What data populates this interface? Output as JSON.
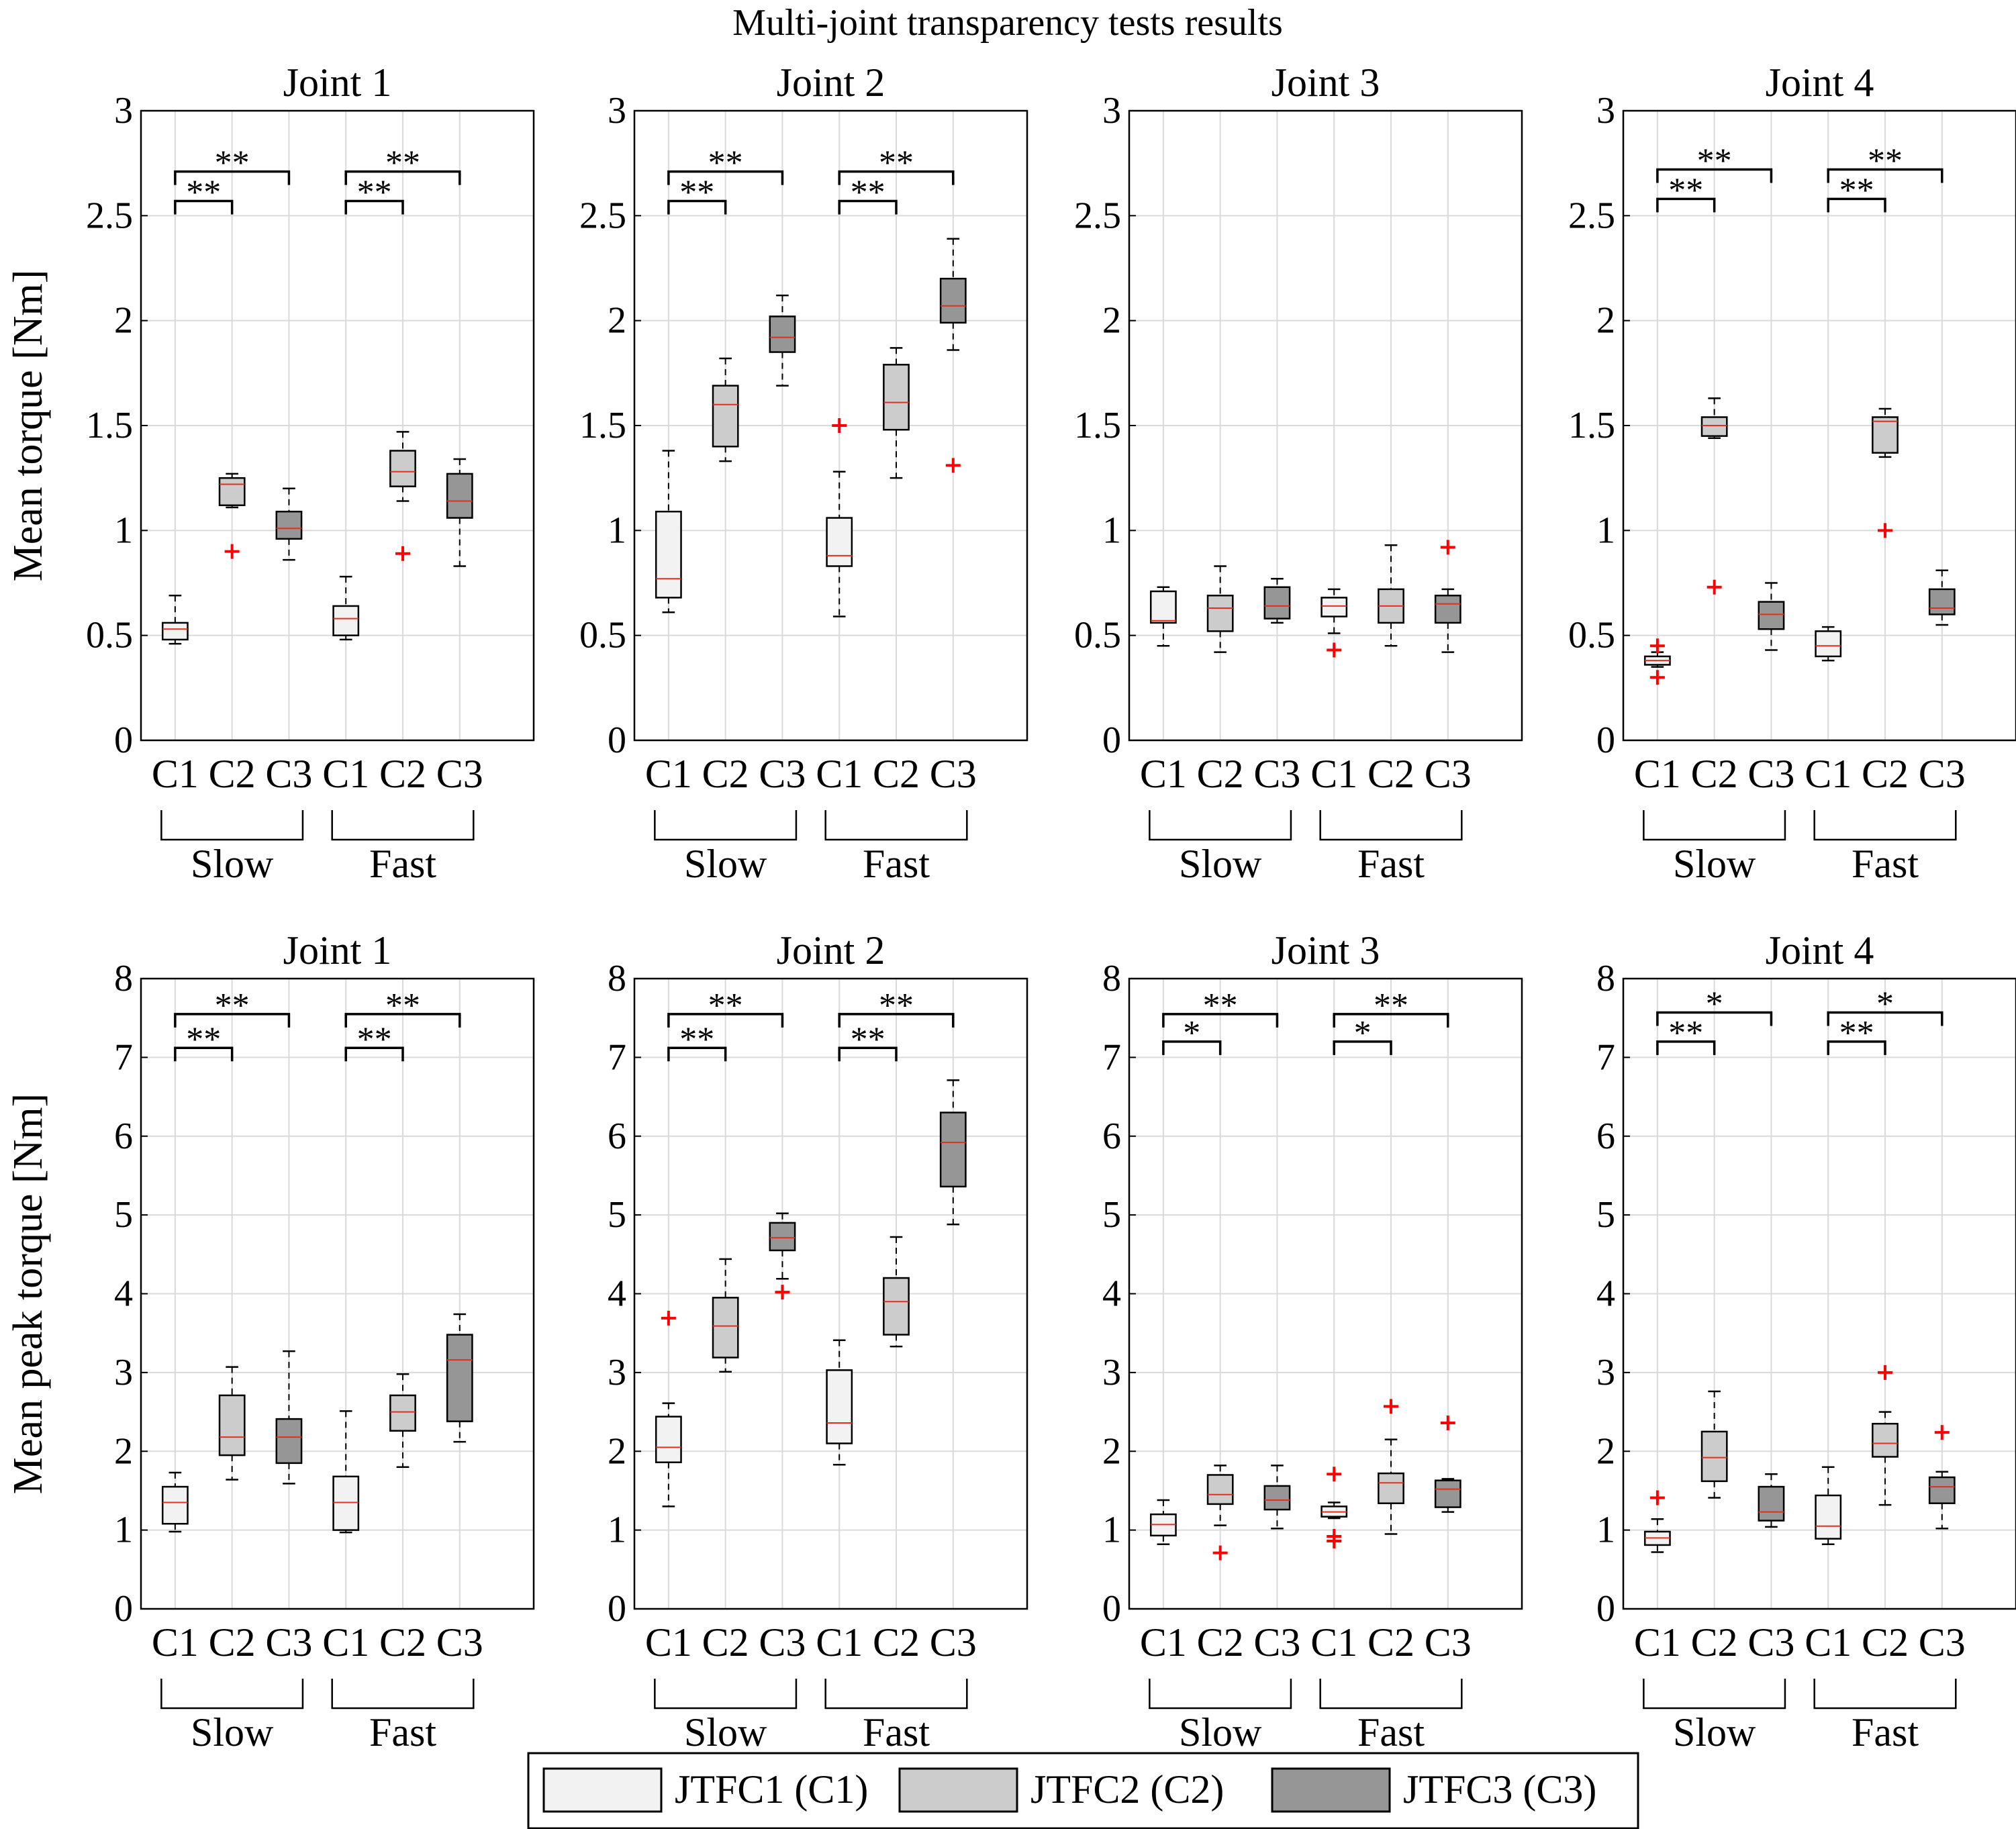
{
  "title": "Multi-joint transparency tests results",
  "colors": {
    "C1": "#f2f2f2",
    "C2": "#cccccc",
    "C3": "#969696",
    "median": "#e0301e",
    "outlier": "#ff0000",
    "grid": "#dadada"
  },
  "legend": [
    {
      "key": "C1",
      "label": "JTFC1 (C1)"
    },
    {
      "key": "C2",
      "label": "JTFC2 (C2)"
    },
    {
      "key": "C3",
      "label": "JTFC3 (C3)"
    }
  ],
  "chart_data": [
    {
      "type": "box",
      "row": 0,
      "col": 0,
      "title": "Joint 1",
      "ylabel": "Mean torque [Nm]",
      "ylim": [
        0,
        3
      ],
      "yticks": [
        "0",
        "0.5",
        "1",
        "1.5",
        "2",
        "2.5",
        "3"
      ],
      "ytick_values": [
        0,
        0.5,
        1,
        1.5,
        2,
        2.5,
        3
      ],
      "categories": [
        "C1",
        "C2",
        "C3",
        "C1",
        "C2",
        "C3"
      ],
      "groups": [
        "Slow",
        "Fast"
      ],
      "boxes": [
        {
          "c": "C1",
          "min": 0.46,
          "q1": 0.48,
          "med": 0.53,
          "q3": 0.56,
          "max": 0.69,
          "outliers": []
        },
        {
          "c": "C2",
          "min": 1.11,
          "q1": 1.12,
          "med": 1.22,
          "q3": 1.25,
          "max": 1.27,
          "outliers": [
            0.9
          ]
        },
        {
          "c": "C3",
          "min": 0.86,
          "q1": 0.96,
          "med": 1.01,
          "q3": 1.09,
          "max": 1.2,
          "outliers": []
        },
        {
          "c": "C1",
          "min": 0.48,
          "q1": 0.5,
          "med": 0.58,
          "q3": 0.64,
          "max": 0.78,
          "outliers": []
        },
        {
          "c": "C2",
          "min": 1.14,
          "q1": 1.21,
          "med": 1.28,
          "q3": 1.38,
          "max": 1.47,
          "outliers": [
            0.89
          ]
        },
        {
          "c": "C3",
          "min": 0.83,
          "q1": 1.06,
          "med": 1.14,
          "q3": 1.27,
          "max": 1.34,
          "outliers": []
        }
      ],
      "significance": [
        {
          "from": 0,
          "to": 1,
          "y": 2.57,
          "text": "**"
        },
        {
          "from": 0,
          "to": 2,
          "y": 2.71,
          "text": "**"
        },
        {
          "from": 3,
          "to": 4,
          "y": 2.57,
          "text": "**"
        },
        {
          "from": 3,
          "to": 5,
          "y": 2.71,
          "text": "**"
        }
      ]
    },
    {
      "type": "box",
      "row": 0,
      "col": 1,
      "title": "Joint 2",
      "ylabel": "",
      "ylim": [
        0,
        3
      ],
      "yticks": [
        "0",
        "0.5",
        "1",
        "1.5",
        "2",
        "2.5",
        "3"
      ],
      "ytick_values": [
        0,
        0.5,
        1,
        1.5,
        2,
        2.5,
        3
      ],
      "categories": [
        "C1",
        "C2",
        "C3",
        "C1",
        "C2",
        "C3"
      ],
      "groups": [
        "Slow",
        "Fast"
      ],
      "boxes": [
        {
          "c": "C1",
          "min": 0.61,
          "q1": 0.68,
          "med": 0.77,
          "q3": 1.09,
          "max": 1.38,
          "outliers": []
        },
        {
          "c": "C2",
          "min": 1.33,
          "q1": 1.4,
          "med": 1.6,
          "q3": 1.69,
          "max": 1.82,
          "outliers": []
        },
        {
          "c": "C3",
          "min": 1.69,
          "q1": 1.85,
          "med": 1.92,
          "q3": 2.02,
          "max": 2.12,
          "outliers": []
        },
        {
          "c": "C1",
          "min": 0.59,
          "q1": 0.83,
          "med": 0.88,
          "q3": 1.06,
          "max": 1.28,
          "outliers": [
            1.5
          ]
        },
        {
          "c": "C2",
          "min": 1.25,
          "q1": 1.48,
          "med": 1.61,
          "q3": 1.79,
          "max": 1.87,
          "outliers": []
        },
        {
          "c": "C3",
          "min": 1.86,
          "q1": 1.99,
          "med": 2.07,
          "q3": 2.2,
          "max": 2.39,
          "outliers": [
            1.31
          ]
        }
      ],
      "significance": [
        {
          "from": 0,
          "to": 1,
          "y": 2.57,
          "text": "**"
        },
        {
          "from": 0,
          "to": 2,
          "y": 2.71,
          "text": "**"
        },
        {
          "from": 3,
          "to": 4,
          "y": 2.57,
          "text": "**"
        },
        {
          "from": 3,
          "to": 5,
          "y": 2.71,
          "text": "**"
        }
      ]
    },
    {
      "type": "box",
      "row": 0,
      "col": 2,
      "title": "Joint 3",
      "ylabel": "",
      "ylim": [
        0,
        3
      ],
      "yticks": [
        "0",
        "0.5",
        "1",
        "1.5",
        "2",
        "2.5",
        "3"
      ],
      "ytick_values": [
        0,
        0.5,
        1,
        1.5,
        2,
        2.5,
        3
      ],
      "categories": [
        "C1",
        "C2",
        "C3",
        "C1",
        "C2",
        "C3"
      ],
      "groups": [
        "Slow",
        "Fast"
      ],
      "boxes": [
        {
          "c": "C1",
          "min": 0.45,
          "q1": 0.56,
          "med": 0.57,
          "q3": 0.71,
          "max": 0.73,
          "outliers": []
        },
        {
          "c": "C2",
          "min": 0.42,
          "q1": 0.52,
          "med": 0.63,
          "q3": 0.69,
          "max": 0.83,
          "outliers": []
        },
        {
          "c": "C3",
          "min": 0.56,
          "q1": 0.58,
          "med": 0.64,
          "q3": 0.73,
          "max": 0.77,
          "outliers": []
        },
        {
          "c": "C1",
          "min": 0.51,
          "q1": 0.59,
          "med": 0.64,
          "q3": 0.68,
          "max": 0.72,
          "outliers": [
            0.43
          ]
        },
        {
          "c": "C2",
          "min": 0.45,
          "q1": 0.56,
          "med": 0.64,
          "q3": 0.72,
          "max": 0.93,
          "outliers": []
        },
        {
          "c": "C3",
          "min": 0.42,
          "q1": 0.56,
          "med": 0.65,
          "q3": 0.69,
          "max": 0.72,
          "outliers": [
            0.92
          ]
        }
      ],
      "significance": []
    },
    {
      "type": "box",
      "row": 0,
      "col": 3,
      "title": "Joint 4",
      "ylabel": "",
      "ylim": [
        0,
        3
      ],
      "yticks": [
        "0",
        "0.5",
        "1",
        "1.5",
        "2",
        "2.5",
        "3"
      ],
      "ytick_values": [
        0,
        0.5,
        1,
        1.5,
        2,
        2.5,
        3
      ],
      "categories": [
        "C1",
        "C2",
        "C3",
        "C1",
        "C2",
        "C3"
      ],
      "groups": [
        "Slow",
        "Fast"
      ],
      "boxes": [
        {
          "c": "C1",
          "min": 0.35,
          "q1": 0.36,
          "med": 0.38,
          "q3": 0.4,
          "max": 0.42,
          "outliers": [
            0.3,
            0.45
          ]
        },
        {
          "c": "C2",
          "min": 1.44,
          "q1": 1.45,
          "med": 1.5,
          "q3": 1.54,
          "max": 1.63,
          "outliers": [
            0.73
          ]
        },
        {
          "c": "C3",
          "min": 0.43,
          "q1": 0.53,
          "med": 0.6,
          "q3": 0.66,
          "max": 0.75,
          "outliers": []
        },
        {
          "c": "C1",
          "min": 0.38,
          "q1": 0.4,
          "med": 0.45,
          "q3": 0.52,
          "max": 0.54,
          "outliers": []
        },
        {
          "c": "C2",
          "min": 1.35,
          "q1": 1.37,
          "med": 1.52,
          "q3": 1.54,
          "max": 1.58,
          "outliers": [
            1.0
          ]
        },
        {
          "c": "C3",
          "min": 0.55,
          "q1": 0.6,
          "med": 0.63,
          "q3": 0.72,
          "max": 0.81,
          "outliers": []
        }
      ],
      "significance": [
        {
          "from": 0,
          "to": 1,
          "y": 2.58,
          "text": "**"
        },
        {
          "from": 0,
          "to": 2,
          "y": 2.72,
          "text": "**"
        },
        {
          "from": 3,
          "to": 4,
          "y": 2.58,
          "text": "**"
        },
        {
          "from": 3,
          "to": 5,
          "y": 2.72,
          "text": "**"
        }
      ]
    },
    {
      "type": "box",
      "row": 1,
      "col": 0,
      "title": "Joint 1",
      "ylabel": "Mean peak torque [Nm]",
      "ylim": [
        0,
        8
      ],
      "yticks": [
        "0",
        "1",
        "2",
        "3",
        "4",
        "5",
        "6",
        "7",
        "8"
      ],
      "ytick_values": [
        0,
        1,
        2,
        3,
        4,
        5,
        6,
        7,
        8
      ],
      "categories": [
        "C1",
        "C2",
        "C3",
        "C1",
        "C2",
        "C3"
      ],
      "groups": [
        "Slow",
        "Fast"
      ],
      "boxes": [
        {
          "c": "C1",
          "min": 0.98,
          "q1": 1.08,
          "med": 1.35,
          "q3": 1.55,
          "max": 1.73,
          "outliers": []
        },
        {
          "c": "C2",
          "min": 1.64,
          "q1": 1.95,
          "med": 2.18,
          "q3": 2.71,
          "max": 3.07,
          "outliers": []
        },
        {
          "c": "C3",
          "min": 1.59,
          "q1": 1.85,
          "med": 2.18,
          "q3": 2.41,
          "max": 3.27,
          "outliers": []
        },
        {
          "c": "C1",
          "min": 0.97,
          "q1": 1.0,
          "med": 1.35,
          "q3": 1.68,
          "max": 2.51,
          "outliers": []
        },
        {
          "c": "C2",
          "min": 1.8,
          "q1": 2.26,
          "med": 2.5,
          "q3": 2.71,
          "max": 2.98,
          "outliers": []
        },
        {
          "c": "C3",
          "min": 2.12,
          "q1": 2.38,
          "med": 3.16,
          "q3": 3.48,
          "max": 3.74,
          "outliers": []
        }
      ],
      "significance": [
        {
          "from": 0,
          "to": 1,
          "y": 7.12,
          "text": "**"
        },
        {
          "from": 0,
          "to": 2,
          "y": 7.55,
          "text": "**"
        },
        {
          "from": 3,
          "to": 4,
          "y": 7.12,
          "text": "**"
        },
        {
          "from": 3,
          "to": 5,
          "y": 7.55,
          "text": "**"
        }
      ]
    },
    {
      "type": "box",
      "row": 1,
      "col": 1,
      "title": "Joint 2",
      "ylabel": "",
      "ylim": [
        0,
        8
      ],
      "yticks": [
        "0",
        "1",
        "2",
        "3",
        "4",
        "5",
        "6",
        "7",
        "8"
      ],
      "ytick_values": [
        0,
        1,
        2,
        3,
        4,
        5,
        6,
        7,
        8
      ],
      "categories": [
        "C1",
        "C2",
        "C3",
        "C1",
        "C2",
        "C3"
      ],
      "groups": [
        "Slow",
        "Fast"
      ],
      "boxes": [
        {
          "c": "C1",
          "min": 1.3,
          "q1": 1.86,
          "med": 2.05,
          "q3": 2.44,
          "max": 2.61,
          "outliers": [
            3.69
          ]
        },
        {
          "c": "C2",
          "min": 3.01,
          "q1": 3.19,
          "med": 3.59,
          "q3": 3.95,
          "max": 4.44,
          "outliers": []
        },
        {
          "c": "C3",
          "min": 4.19,
          "q1": 4.55,
          "med": 4.71,
          "q3": 4.9,
          "max": 5.02,
          "outliers": [
            4.02
          ]
        },
        {
          "c": "C1",
          "min": 1.83,
          "q1": 2.1,
          "med": 2.36,
          "q3": 3.03,
          "max": 3.41,
          "outliers": []
        },
        {
          "c": "C2",
          "min": 3.33,
          "q1": 3.48,
          "med": 3.9,
          "q3": 4.2,
          "max": 4.72,
          "outliers": []
        },
        {
          "c": "C3",
          "min": 4.88,
          "q1": 5.36,
          "med": 5.92,
          "q3": 6.3,
          "max": 6.71,
          "outliers": []
        }
      ],
      "significance": [
        {
          "from": 0,
          "to": 1,
          "y": 7.12,
          "text": "**"
        },
        {
          "from": 0,
          "to": 2,
          "y": 7.55,
          "text": "**"
        },
        {
          "from": 3,
          "to": 4,
          "y": 7.12,
          "text": "**"
        },
        {
          "from": 3,
          "to": 5,
          "y": 7.55,
          "text": "**"
        }
      ]
    },
    {
      "type": "box",
      "row": 1,
      "col": 2,
      "title": "Joint 3",
      "ylabel": "",
      "ylim": [
        0,
        8
      ],
      "yticks": [
        "0",
        "1",
        "2",
        "3",
        "4",
        "5",
        "6",
        "7",
        "8"
      ],
      "ytick_values": [
        0,
        1,
        2,
        3,
        4,
        5,
        6,
        7,
        8
      ],
      "categories": [
        "C1",
        "C2",
        "C3",
        "C1",
        "C2",
        "C3"
      ],
      "groups": [
        "Slow",
        "Fast"
      ],
      "boxes": [
        {
          "c": "C1",
          "min": 0.82,
          "q1": 0.93,
          "med": 1.07,
          "q3": 1.2,
          "max": 1.38,
          "outliers": []
        },
        {
          "c": "C2",
          "min": 1.06,
          "q1": 1.33,
          "med": 1.45,
          "q3": 1.7,
          "max": 1.82,
          "outliers": [
            0.71
          ]
        },
        {
          "c": "C3",
          "min": 1.02,
          "q1": 1.26,
          "med": 1.38,
          "q3": 1.56,
          "max": 1.82,
          "outliers": []
        },
        {
          "c": "C1",
          "min": 1.15,
          "q1": 1.17,
          "med": 1.23,
          "q3": 1.3,
          "max": 1.35,
          "outliers": [
            1.71,
            0.92,
            0.86
          ]
        },
        {
          "c": "C2",
          "min": 0.95,
          "q1": 1.34,
          "med": 1.6,
          "q3": 1.72,
          "max": 2.15,
          "outliers": [
            2.57
          ]
        },
        {
          "c": "C3",
          "min": 1.23,
          "q1": 1.29,
          "med": 1.52,
          "q3": 1.63,
          "max": 1.65,
          "outliers": [
            2.36
          ]
        }
      ],
      "significance": [
        {
          "from": 0,
          "to": 1,
          "y": 7.2,
          "text": "*"
        },
        {
          "from": 0,
          "to": 2,
          "y": 7.55,
          "text": "**"
        },
        {
          "from": 3,
          "to": 4,
          "y": 7.2,
          "text": "*"
        },
        {
          "from": 3,
          "to": 5,
          "y": 7.55,
          "text": "**"
        }
      ]
    },
    {
      "type": "box",
      "row": 1,
      "col": 3,
      "title": "Joint 4",
      "ylabel": "",
      "ylim": [
        0,
        8
      ],
      "yticks": [
        "0",
        "1",
        "2",
        "3",
        "4",
        "5",
        "6",
        "7",
        "8"
      ],
      "ytick_values": [
        0,
        1,
        2,
        3,
        4,
        5,
        6,
        7,
        8
      ],
      "categories": [
        "C1",
        "C2",
        "C3",
        "C1",
        "C2",
        "C3"
      ],
      "groups": [
        "Slow",
        "Fast"
      ],
      "boxes": [
        {
          "c": "C1",
          "min": 0.72,
          "q1": 0.81,
          "med": 0.9,
          "q3": 0.98,
          "max": 1.14,
          "outliers": [
            1.41
          ]
        },
        {
          "c": "C2",
          "min": 1.41,
          "q1": 1.62,
          "med": 1.92,
          "q3": 2.25,
          "max": 2.76,
          "outliers": []
        },
        {
          "c": "C3",
          "min": 1.04,
          "q1": 1.12,
          "med": 1.23,
          "q3": 1.55,
          "max": 1.71,
          "outliers": []
        },
        {
          "c": "C1",
          "min": 0.82,
          "q1": 0.89,
          "med": 1.05,
          "q3": 1.44,
          "max": 1.8,
          "outliers": []
        },
        {
          "c": "C2",
          "min": 1.32,
          "q1": 1.93,
          "med": 2.1,
          "q3": 2.35,
          "max": 2.5,
          "outliers": [
            3.0
          ]
        },
        {
          "c": "C3",
          "min": 1.02,
          "q1": 1.34,
          "med": 1.55,
          "q3": 1.67,
          "max": 1.74,
          "outliers": [
            2.24
          ]
        }
      ],
      "significance": [
        {
          "from": 0,
          "to": 1,
          "y": 7.2,
          "text": "**"
        },
        {
          "from": 0,
          "to": 2,
          "y": 7.57,
          "text": "*"
        },
        {
          "from": 3,
          "to": 4,
          "y": 7.2,
          "text": "**"
        },
        {
          "from": 3,
          "to": 5,
          "y": 7.57,
          "text": "*"
        }
      ]
    }
  ]
}
